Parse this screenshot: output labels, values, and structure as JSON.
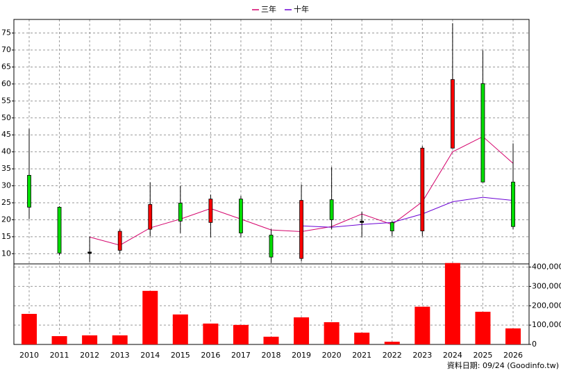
{
  "chart_data": {
    "type": "candlestick",
    "categories": [
      "2010",
      "2011",
      "2012",
      "2013",
      "2014",
      "2015",
      "2016",
      "2017",
      "2018",
      "2019",
      "2020",
      "2021",
      "2022",
      "2023",
      "2024",
      "2025",
      "2026"
    ],
    "open": [
      33.1,
      23.7,
      10.5,
      11.0,
      17.2,
      24.9,
      19.2,
      26.1,
      15.5,
      8.6,
      25.9,
      19.6,
      19.2,
      16.7,
      41.1,
      60.1,
      31.1
    ],
    "close": [
      23.7,
      10.2,
      10.5,
      16.6,
      24.5,
      19.6,
      26.1,
      16.1,
      9.0,
      25.7,
      20.0,
      19.6,
      16.7,
      41.1,
      61.3,
      31.1,
      18.0
    ],
    "high": [
      46.8,
      24.0,
      15.0,
      17.2,
      31.0,
      30.0,
      27.4,
      27.0,
      17.2,
      30.4,
      35.5,
      22.3,
      19.6,
      41.7,
      77.9,
      69.9,
      42.5
    ],
    "low": [
      20.2,
      9.5,
      7.6,
      10.0,
      15.1,
      16.1,
      14.9,
      14.9,
      7.3,
      7.8,
      17.2,
      14.9,
      15.1,
      15.1,
      41.0,
      31.0,
      17.2
    ],
    "up_color": "#ff0000",
    "down_color": "#00dd00",
    "flat_color": "#000000",
    "series": [
      {
        "name": "三年",
        "color": "#d4006a",
        "values": [
          null,
          null,
          14.9,
          12.5,
          17.6,
          20.2,
          23.3,
          20.2,
          17.0,
          16.5,
          18.0,
          21.7,
          18.6,
          25.3,
          40.0,
          44.5,
          36.6
        ]
      },
      {
        "name": "十年",
        "color": "#6a00d4",
        "values": [
          null,
          null,
          null,
          null,
          null,
          null,
          null,
          null,
          null,
          18.2,
          17.8,
          18.6,
          19.2,
          21.7,
          25.3,
          26.6,
          25.7
        ]
      },
      {
        "type": "bar",
        "axis": "y2",
        "color": "#ff0000",
        "values": [
          158000,
          43000,
          47000,
          47000,
          277000,
          155000,
          108000,
          101000,
          40000,
          140000,
          115000,
          61000,
          14000,
          195000,
          421000,
          169000,
          83000
        ]
      }
    ],
    "ylim": [
      7,
      79
    ],
    "yticks": [
      10,
      15,
      20,
      25,
      30,
      35,
      40,
      45,
      50,
      55,
      60,
      65,
      70,
      75
    ],
    "y2lim": [
      0,
      420000
    ],
    "y2ticks": [
      0,
      {
        "value": 100000,
        "label": "100,000"
      },
      {
        "value": 200000,
        "label": "200,000"
      },
      {
        "value": 300000,
        "label": "300,000"
      },
      {
        "value": 400000,
        "label": "400,000"
      }
    ],
    "grid": true,
    "footer": "資料日期: 09/24 (Goodinfo.tw)"
  }
}
